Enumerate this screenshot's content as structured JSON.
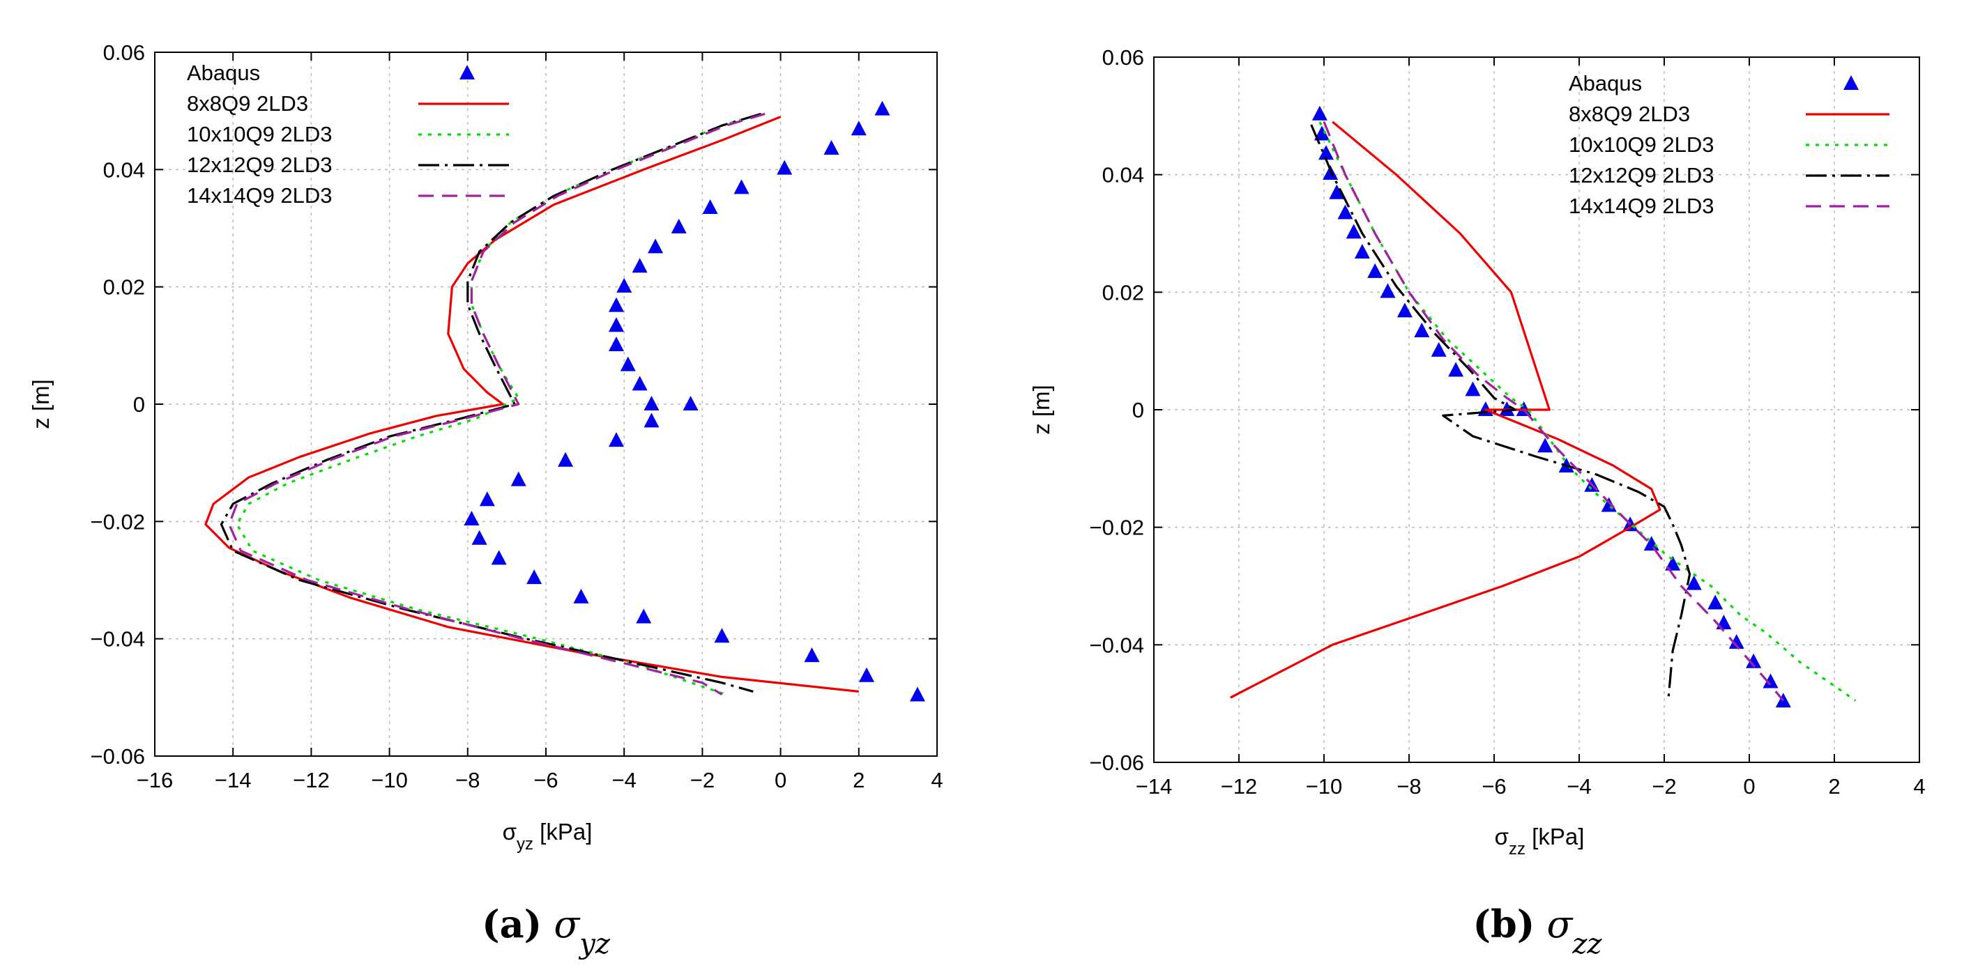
{
  "chart_data": [
    {
      "type": "line",
      "id": "a",
      "caption": {
        "label": "(a)",
        "symbol": "σ",
        "sub": "yz"
      },
      "xlabel": {
        "symbol": "σ",
        "sub": "yz",
        "unit": " [kPa]"
      },
      "ylabel": "z [m]",
      "xlim": [
        -16,
        4
      ],
      "ylim": [
        -0.06,
        0.06
      ],
      "xticks": [
        -16,
        -14,
        -12,
        -10,
        -8,
        -6,
        -4,
        -2,
        0,
        2,
        4
      ],
      "yticks": [
        -0.06,
        -0.04,
        -0.02,
        0,
        0.02,
        0.04,
        0.06
      ],
      "xtick_labels": [
        "−16",
        "−14",
        "−12",
        "−10",
        "−8",
        "−6",
        "−4",
        "−2",
        "0",
        "2",
        "4"
      ],
      "ytick_labels": [
        "−0.06",
        "−0.04",
        "−0.02",
        "0",
        "0.02",
        "0.04",
        "0.06"
      ],
      "grid": true,
      "legend_position": "top-left",
      "series": [
        {
          "name": "Abaqus",
          "style": "markers",
          "color": "#0000ee",
          "points": [
            [
              2.6,
              0.0503
            ],
            [
              2.0,
              0.0469
            ],
            [
              1.3,
              0.0436
            ],
            [
              0.1,
              0.0402
            ],
            [
              -1.0,
              0.0369
            ],
            [
              -1.8,
              0.0335
            ],
            [
              -2.6,
              0.0302
            ],
            [
              -3.2,
              0.0268
            ],
            [
              -3.6,
              0.0235
            ],
            [
              -4.0,
              0.0201
            ],
            [
              -4.2,
              0.0168
            ],
            [
              -4.2,
              0.0134
            ],
            [
              -4.2,
              0.0101
            ],
            [
              -3.9,
              0.0067
            ],
            [
              -3.6,
              0.0034
            ],
            [
              -3.3,
              0.0
            ],
            [
              -3.3,
              -0.0029
            ],
            [
              -2.3,
              0.0
            ],
            [
              -4.2,
              -0.0062
            ],
            [
              -5.5,
              -0.0096
            ],
            [
              -6.7,
              -0.0129
            ],
            [
              -7.5,
              -0.0163
            ],
            [
              -7.9,
              -0.0196
            ],
            [
              -7.7,
              -0.0229
            ],
            [
              -7.2,
              -0.0263
            ],
            [
              -6.3,
              -0.0296
            ],
            [
              -5.1,
              -0.0329
            ],
            [
              -3.5,
              -0.0363
            ],
            [
              -1.5,
              -0.0396
            ],
            [
              0.8,
              -0.0429
            ],
            [
              2.2,
              -0.0463
            ],
            [
              3.5,
              -0.0496
            ]
          ]
        },
        {
          "name": "8x8Q9 2LD3",
          "style": "solid",
          "color": "#ee0000",
          "points": [
            [
              0.0,
              0.049
            ],
            [
              -1.5,
              0.045
            ],
            [
              -3.5,
              0.04
            ],
            [
              -5.8,
              0.034
            ],
            [
              -7.3,
              0.028
            ],
            [
              -8.0,
              0.024
            ],
            [
              -8.4,
              0.02
            ],
            [
              -8.5,
              0.012
            ],
            [
              -8.1,
              0.006
            ],
            [
              -7.5,
              0.002
            ],
            [
              -7.1,
              0.0
            ],
            [
              -8.8,
              -0.002
            ],
            [
              -10.5,
              -0.005
            ],
            [
              -12.3,
              -0.009
            ],
            [
              -13.6,
              -0.0125
            ],
            [
              -14.5,
              -0.017
            ],
            [
              -14.7,
              -0.0205
            ],
            [
              -14.1,
              -0.0245
            ],
            [
              -12.8,
              -0.0285
            ],
            [
              -11.0,
              -0.033
            ],
            [
              -8.5,
              -0.038
            ],
            [
              -5.0,
              -0.0425
            ],
            [
              -1.5,
              -0.0465
            ],
            [
              2.0,
              -0.049
            ]
          ]
        },
        {
          "name": "10x10Q9 2LD3",
          "style": "dotted",
          "color": "#00dd00",
          "points": [
            [
              -0.5,
              0.0495
            ],
            [
              -1.5,
              0.0475
            ],
            [
              -2.8,
              0.044
            ],
            [
              -4.3,
              0.04
            ],
            [
              -5.8,
              0.0355
            ],
            [
              -6.9,
              0.031
            ],
            [
              -7.6,
              0.026
            ],
            [
              -7.9,
              0.021
            ],
            [
              -7.9,
              0.017
            ],
            [
              -7.6,
              0.012
            ],
            [
              -7.2,
              0.0065
            ],
            [
              -6.7,
              0.001
            ],
            [
              -7.8,
              -0.0025
            ],
            [
              -9.3,
              -0.0055
            ],
            [
              -11.0,
              -0.0095
            ],
            [
              -12.6,
              -0.0135
            ],
            [
              -13.6,
              -0.017
            ],
            [
              -13.9,
              -0.0205
            ],
            [
              -13.5,
              -0.025
            ],
            [
              -11.8,
              -0.03
            ],
            [
              -9.3,
              -0.035
            ],
            [
              -6.2,
              -0.04
            ],
            [
              -3.6,
              -0.0445
            ],
            [
              -2.5,
              -0.047
            ],
            [
              -1.4,
              -0.0495
            ]
          ]
        },
        {
          "name": "12x12Q9 2LD3",
          "style": "dashdot",
          "color": "#000000",
          "points": [
            [
              -0.5,
              0.0495
            ],
            [
              -1.5,
              0.0475
            ],
            [
              -2.8,
              0.044
            ],
            [
              -4.3,
              0.04
            ],
            [
              -5.8,
              0.0355
            ],
            [
              -6.9,
              0.031
            ],
            [
              -7.7,
              0.026
            ],
            [
              -8.0,
              0.021
            ],
            [
              -8.0,
              0.017
            ],
            [
              -7.7,
              0.012
            ],
            [
              -7.3,
              0.0065
            ],
            [
              -6.8,
              0.0
            ],
            [
              -8.2,
              -0.0025
            ],
            [
              -10.0,
              -0.0055
            ],
            [
              -11.6,
              -0.0095
            ],
            [
              -13.0,
              -0.0135
            ],
            [
              -14.0,
              -0.017
            ],
            [
              -14.3,
              -0.0205
            ],
            [
              -14.0,
              -0.025
            ],
            [
              -12.3,
              -0.03
            ],
            [
              -9.6,
              -0.035
            ],
            [
              -6.5,
              -0.04
            ],
            [
              -3.5,
              -0.0445
            ],
            [
              -1.5,
              -0.0475
            ],
            [
              -0.7,
              -0.049
            ]
          ]
        },
        {
          "name": "14x14Q9 2LD3",
          "style": "dashed",
          "color": "#a020a0",
          "points": [
            [
              -0.4,
              0.0495
            ],
            [
              -1.4,
              0.0475
            ],
            [
              -2.7,
              0.044
            ],
            [
              -4.2,
              0.04
            ],
            [
              -5.7,
              0.0355
            ],
            [
              -6.8,
              0.031
            ],
            [
              -7.6,
              0.026
            ],
            [
              -7.9,
              0.021
            ],
            [
              -7.9,
              0.017
            ],
            [
              -7.6,
              0.012
            ],
            [
              -7.2,
              0.0065
            ],
            [
              -6.7,
              0.0
            ],
            [
              -8.1,
              -0.0025
            ],
            [
              -9.9,
              -0.0055
            ],
            [
              -11.5,
              -0.0095
            ],
            [
              -12.9,
              -0.0135
            ],
            [
              -13.9,
              -0.017
            ],
            [
              -14.1,
              -0.0205
            ],
            [
              -13.8,
              -0.025
            ],
            [
              -12.1,
              -0.03
            ],
            [
              -9.5,
              -0.035
            ],
            [
              -6.6,
              -0.04
            ],
            [
              -3.8,
              -0.0445
            ],
            [
              -2.0,
              -0.0475
            ],
            [
              -1.5,
              -0.0495
            ]
          ]
        }
      ]
    },
    {
      "type": "line",
      "id": "b",
      "caption": {
        "label": "(b)",
        "symbol": "σ",
        "sub": "zz"
      },
      "xlabel": {
        "symbol": "σ",
        "sub": "zz",
        "unit": " [kPa]"
      },
      "ylabel": "z [m]",
      "xlim": [
        -14,
        4
      ],
      "ylim": [
        -0.06,
        0.06
      ],
      "xticks": [
        -14,
        -12,
        -10,
        -8,
        -6,
        -4,
        -2,
        0,
        2,
        4
      ],
      "yticks": [
        -0.06,
        -0.04,
        -0.02,
        0,
        0.02,
        0.04,
        0.06
      ],
      "xtick_labels": [
        "−14",
        "−12",
        "−10",
        "−8",
        "−6",
        "−4",
        "−2",
        "0",
        "2",
        "4"
      ],
      "ytick_labels": [
        "−0.06",
        "−0.04",
        "−0.02",
        "0",
        "0.02",
        "0.04",
        "0.06"
      ],
      "grid": true,
      "legend_position": "top-right",
      "series": [
        {
          "name": "Abaqus",
          "style": "markers",
          "color": "#0000ee",
          "points": [
            [
              -10.1,
              0.0503
            ],
            [
              -10.05,
              0.0469
            ],
            [
              -9.95,
              0.0436
            ],
            [
              -9.85,
              0.0402
            ],
            [
              -9.7,
              0.0369
            ],
            [
              -9.5,
              0.0335
            ],
            [
              -9.3,
              0.0302
            ],
            [
              -9.1,
              0.0268
            ],
            [
              -8.8,
              0.0235
            ],
            [
              -8.5,
              0.0201
            ],
            [
              -8.1,
              0.0168
            ],
            [
              -7.7,
              0.0134
            ],
            [
              -7.3,
              0.0101
            ],
            [
              -6.9,
              0.0067
            ],
            [
              -6.5,
              0.0034
            ],
            [
              -6.2,
              0.0
            ],
            [
              -5.7,
              0.0
            ],
            [
              -5.3,
              0.0
            ],
            [
              -4.8,
              -0.0062
            ],
            [
              -4.3,
              -0.0096
            ],
            [
              -3.7,
              -0.0129
            ],
            [
              -3.3,
              -0.0163
            ],
            [
              -2.8,
              -0.0196
            ],
            [
              -2.3,
              -0.0229
            ],
            [
              -1.8,
              -0.0263
            ],
            [
              -1.3,
              -0.0296
            ],
            [
              -0.8,
              -0.0329
            ],
            [
              -0.6,
              -0.0363
            ],
            [
              -0.3,
              -0.0396
            ],
            [
              0.1,
              -0.0429
            ],
            [
              0.5,
              -0.0463
            ],
            [
              0.8,
              -0.0496
            ]
          ]
        },
        {
          "name": "8x8Q9 2LD3",
          "style": "solid",
          "color": "#ee0000",
          "points": [
            [
              -9.8,
              0.049
            ],
            [
              -8.3,
              0.04
            ],
            [
              -6.8,
              0.03
            ],
            [
              -5.6,
              0.02
            ],
            [
              -4.7,
              0.0
            ],
            [
              -6.2,
              0.0
            ],
            [
              -4.5,
              -0.005
            ],
            [
              -3.2,
              -0.0095
            ],
            [
              -2.3,
              -0.0135
            ],
            [
              -2.1,
              -0.017
            ],
            [
              -2.8,
              -0.02
            ],
            [
              -4.0,
              -0.025
            ],
            [
              -5.8,
              -0.03
            ],
            [
              -7.8,
              -0.035
            ],
            [
              -9.8,
              -0.04
            ],
            [
              -12.2,
              -0.049
            ]
          ]
        },
        {
          "name": "10x10Q9 2LD3",
          "style": "dotted",
          "color": "#00dd00",
          "points": [
            [
              -10.1,
              0.049
            ],
            [
              -9.5,
              0.04
            ],
            [
              -8.8,
              0.03
            ],
            [
              -8.0,
              0.02
            ],
            [
              -7.1,
              0.012
            ],
            [
              -6.2,
              0.006
            ],
            [
              -5.6,
              0.002
            ],
            [
              -5.2,
              0.0
            ],
            [
              -4.7,
              -0.005
            ],
            [
              -4.2,
              -0.01
            ],
            [
              -3.5,
              -0.015
            ],
            [
              -2.7,
              -0.02
            ],
            [
              -1.9,
              -0.025
            ],
            [
              -0.9,
              -0.03
            ],
            [
              -0.2,
              -0.035
            ],
            [
              0.4,
              -0.038
            ],
            [
              1.2,
              -0.043
            ],
            [
              2.5,
              -0.0495
            ]
          ]
        },
        {
          "name": "12x12Q9 2LD3",
          "style": "dashdot",
          "color": "#000000",
          "points": [
            [
              -10.3,
              0.0485
            ],
            [
              -9.8,
              0.04
            ],
            [
              -9.1,
              0.03
            ],
            [
              -8.3,
              0.021
            ],
            [
              -7.4,
              0.013
            ],
            [
              -6.6,
              0.007
            ],
            [
              -6.0,
              0.002
            ],
            [
              -5.5,
              0.0
            ],
            [
              -7.2,
              -0.001
            ],
            [
              -6.5,
              -0.0045
            ],
            [
              -5.0,
              -0.008
            ],
            [
              -3.6,
              -0.011
            ],
            [
              -2.6,
              -0.014
            ],
            [
              -2.0,
              -0.0165
            ],
            [
              -1.8,
              -0.0195
            ],
            [
              -1.6,
              -0.023
            ],
            [
              -1.4,
              -0.028
            ],
            [
              -1.6,
              -0.035
            ],
            [
              -1.8,
              -0.041
            ],
            [
              -1.9,
              -0.049
            ]
          ]
        },
        {
          "name": "14x14Q9 2LD3",
          "style": "dashed",
          "color": "#a020a0",
          "points": [
            [
              -10.0,
              0.049
            ],
            [
              -9.5,
              0.04
            ],
            [
              -8.8,
              0.03
            ],
            [
              -8.0,
              0.02
            ],
            [
              -7.2,
              0.012
            ],
            [
              -6.4,
              0.006
            ],
            [
              -5.7,
              0.002
            ],
            [
              -5.3,
              0.0
            ],
            [
              -4.6,
              -0.006
            ],
            [
              -3.8,
              -0.012
            ],
            [
              -3.0,
              -0.018
            ],
            [
              -2.3,
              -0.023
            ],
            [
              -1.6,
              -0.03
            ],
            [
              -0.8,
              -0.036
            ],
            [
              -0.2,
              -0.041
            ],
            [
              0.4,
              -0.046
            ],
            [
              0.8,
              -0.0495
            ]
          ]
        }
      ]
    }
  ]
}
